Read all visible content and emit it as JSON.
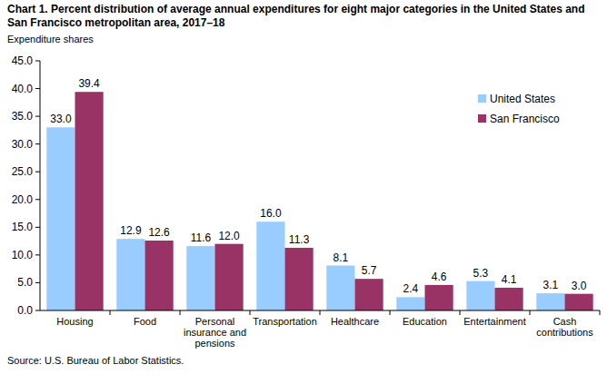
{
  "chart_data": {
    "type": "bar",
    "title": "Chart 1. Percent distribution of average annual expenditures for eight major categories in the United States and San Francisco metropolitan area, 2017–18",
    "ylabel": "Expenditure shares",
    "source": "Source: U.S. Bureau of Labor Statistics.",
    "categories": [
      "Housing",
      "Food",
      "Personal insurance and pensions",
      "Transportation",
      "Healthcare",
      "Education",
      "Entertainment",
      "Cash contributions"
    ],
    "series": [
      {
        "name": "United States",
        "color": "#99ccff",
        "values": [
          33.0,
          12.9,
          11.6,
          16.0,
          8.1,
          2.4,
          5.3,
          3.1
        ],
        "value_labels": [
          "33.0",
          "12.9",
          "11.6",
          "16.0",
          "8.1",
          "2.4",
          "5.3",
          "3.1"
        ]
      },
      {
        "name": "San Francisco",
        "color": "#993366",
        "values": [
          39.4,
          12.6,
          12.0,
          11.3,
          5.7,
          4.6,
          4.1,
          3.0
        ],
        "value_labels": [
          "39.4",
          "12.6",
          "12.0",
          "11.3",
          "5.7",
          "4.6",
          "4.1",
          "3.0"
        ]
      }
    ],
    "ylim": [
      0,
      45
    ],
    "yticks": [
      {
        "value": 0,
        "label": "0.0"
      },
      {
        "value": 5,
        "label": "5.0"
      },
      {
        "value": 10,
        "label": "10.0"
      },
      {
        "value": 15,
        "label": "15.0"
      },
      {
        "value": 20,
        "label": "20.0"
      },
      {
        "value": 25,
        "label": "25.0"
      },
      {
        "value": 30,
        "label": "30.0"
      },
      {
        "value": 35,
        "label": "35.0"
      },
      {
        "value": 40,
        "label": "40.0"
      },
      {
        "value": 45,
        "label": "45.0"
      }
    ],
    "grid": false,
    "legend": "right",
    "data_labels": true
  }
}
